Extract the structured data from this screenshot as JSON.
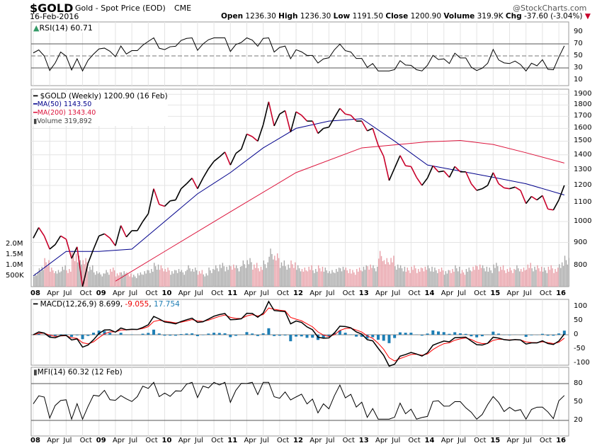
{
  "header": {
    "symbol": "$GOLD",
    "name": "Gold - Spot Price (EOD)",
    "exchange": "CME",
    "date": "16-Feb-2016",
    "brand": "@StockCharts.com",
    "open_label": "Open",
    "open": "1236.30",
    "high_label": "High",
    "high": "1236.30",
    "low_label": "Low",
    "low": "1191.50",
    "close_label": "Close",
    "close": "1200.90",
    "volume_label": "Volume",
    "volume": "319.9K",
    "chg_label": "Chg",
    "chg": "-37.60 (-3.04%)"
  },
  "colors": {
    "price_up": "#000000",
    "price_down": "#c8002a",
    "ma50": "#00008b",
    "ma200": "#dc143c",
    "volume_up": "#a9a9a9",
    "volume_down": "#e8a0a8",
    "macd_signal": "#ff0000",
    "histogram": "#1e7eb4"
  },
  "chart_data": [
    {
      "type": "line",
      "name": "price",
      "title": "$GOLD (Weekly) 1200.90 (16 Feb)",
      "ma50_label": "MA(50) 1143.50",
      "ma200_label": "MA(200) 1343.40",
      "volume_label": "Volume 319,892",
      "yscale": "log",
      "ylim": [
        720,
        1950
      ],
      "y_ticks": [
        "1900",
        "1800",
        "1700",
        "1600",
        "1500",
        "1400",
        "1300",
        "1200",
        "1100",
        "1000",
        "900",
        "800"
      ],
      "volume_ticks": [
        "2.0M",
        "1.5M",
        "1.0M",
        "500K"
      ],
      "x_start": "2008-01",
      "close": [
        920,
        970,
        930,
        870,
        890,
        930,
        915,
        830,
        880,
        720,
        810,
        870,
        930,
        940,
        920,
        885,
        980,
        925,
        955,
        955,
        1000,
        1040,
        1180,
        1090,
        1080,
        1110,
        1115,
        1180,
        1210,
        1245,
        1180,
        1245,
        1305,
        1355,
        1385,
        1420,
        1330,
        1410,
        1440,
        1555,
        1535,
        1500,
        1630,
        1830,
        1620,
        1720,
        1750,
        1570,
        1740,
        1710,
        1660,
        1660,
        1560,
        1600,
        1610,
        1690,
        1770,
        1720,
        1710,
        1660,
        1660,
        1580,
        1600,
        1470,
        1390,
        1230,
        1310,
        1395,
        1325,
        1320,
        1250,
        1200,
        1245,
        1325,
        1285,
        1290,
        1250,
        1320,
        1285,
        1285,
        1210,
        1170,
        1180,
        1200,
        1280,
        1210,
        1185,
        1180,
        1190,
        1170,
        1095,
        1135,
        1115,
        1140,
        1065,
        1060,
        1115,
        1200
      ],
      "ma50": [
        [
          "2008-01",
          760
        ],
        [
          "2008-07",
          860
        ],
        [
          "2009-01",
          860
        ],
        [
          "2009-07",
          870
        ],
        [
          "2010-01",
          1000
        ],
        [
          "2010-07",
          1150
        ],
        [
          "2011-01",
          1280
        ],
        [
          "2011-07",
          1450
        ],
        [
          "2012-01",
          1600
        ],
        [
          "2012-07",
          1660
        ],
        [
          "2013-01",
          1680
        ],
        [
          "2013-07",
          1500
        ],
        [
          "2014-01",
          1330
        ],
        [
          "2014-07",
          1290
        ],
        [
          "2015-01",
          1250
        ],
        [
          "2015-07",
          1210
        ],
        [
          "2016-02",
          1143.5
        ]
      ],
      "ma200": [
        [
          "2009-04",
          740
        ],
        [
          "2010-01",
          860
        ],
        [
          "2011-01",
          1050
        ],
        [
          "2012-01",
          1280
        ],
        [
          "2013-01",
          1450
        ],
        [
          "2014-01",
          1495
        ],
        [
          "2014-07",
          1505
        ],
        [
          "2015-01",
          1475
        ],
        [
          "2015-07",
          1415
        ],
        [
          "2016-02",
          1343.4
        ]
      ],
      "volume_m": [
        0.6,
        0.9,
        1.2,
        0.8,
        0.7,
        0.9,
        0.8,
        1.5,
        1.3,
        1.2,
        0.9,
        0.7,
        0.6,
        0.7,
        0.8,
        0.6,
        0.7,
        0.6,
        0.5,
        0.6,
        0.7,
        0.8,
        1.0,
        0.9,
        0.8,
        0.7,
        0.8,
        0.7,
        0.9,
        0.8,
        0.7,
        0.6,
        0.8,
        0.9,
        1.0,
        0.9,
        1.0,
        0.9,
        1.1,
        1.2,
        1.0,
        0.9,
        1.1,
        1.6,
        1.4,
        1.1,
        1.0,
        1.1,
        0.9,
        0.8,
        0.9,
        0.8,
        0.9,
        0.8,
        0.7,
        0.8,
        0.9,
        0.8,
        0.7,
        0.8,
        0.9,
        1.0,
        0.9,
        1.5,
        1.2,
        1.3,
        1.0,
        0.9,
        0.8,
        0.9,
        0.8,
        0.9,
        0.9,
        0.8,
        0.8,
        0.7,
        0.8,
        0.9,
        0.7,
        0.8,
        0.9,
        1.0,
        0.9,
        0.8,
        1.0,
        0.9,
        0.8,
        0.8,
        0.9,
        0.8,
        1.0,
        0.9,
        0.9,
        0.8,
        0.9,
        0.8,
        1.1,
        1.3
      ]
    },
    {
      "type": "line",
      "name": "rsi",
      "label": "RSI(14) 60.71",
      "y_ticks": [
        "90",
        "70",
        "50",
        "30",
        "10"
      ],
      "ylim": [
        0,
        100
      ]
    },
    {
      "type": "line",
      "name": "macd",
      "label": "MACD(12,26,9) 8.699",
      "signal": "-9.055",
      "hist": "17.754",
      "y_ticks": [
        "100",
        "50",
        "0",
        "-50",
        "-100"
      ]
    },
    {
      "type": "line",
      "name": "mfi",
      "label": "MFI(14) 60.32 (12 Feb)",
      "y_ticks": [
        "80",
        "50",
        "20"
      ]
    }
  ],
  "x_axis": [
    "08",
    "Apr",
    "Jul",
    "Oct",
    "09",
    "Apr",
    "Jul",
    "Oct",
    "10",
    "Apr",
    "Jul",
    "Oct",
    "11",
    "Apr",
    "Jul",
    "Oct",
    "12",
    "Apr",
    "Jul",
    "Oct",
    "13",
    "Apr",
    "Jul",
    "Oct",
    "14",
    "Apr",
    "Jul",
    "Oct",
    "15",
    "Apr",
    "Jul",
    "Oct",
    "16"
  ]
}
